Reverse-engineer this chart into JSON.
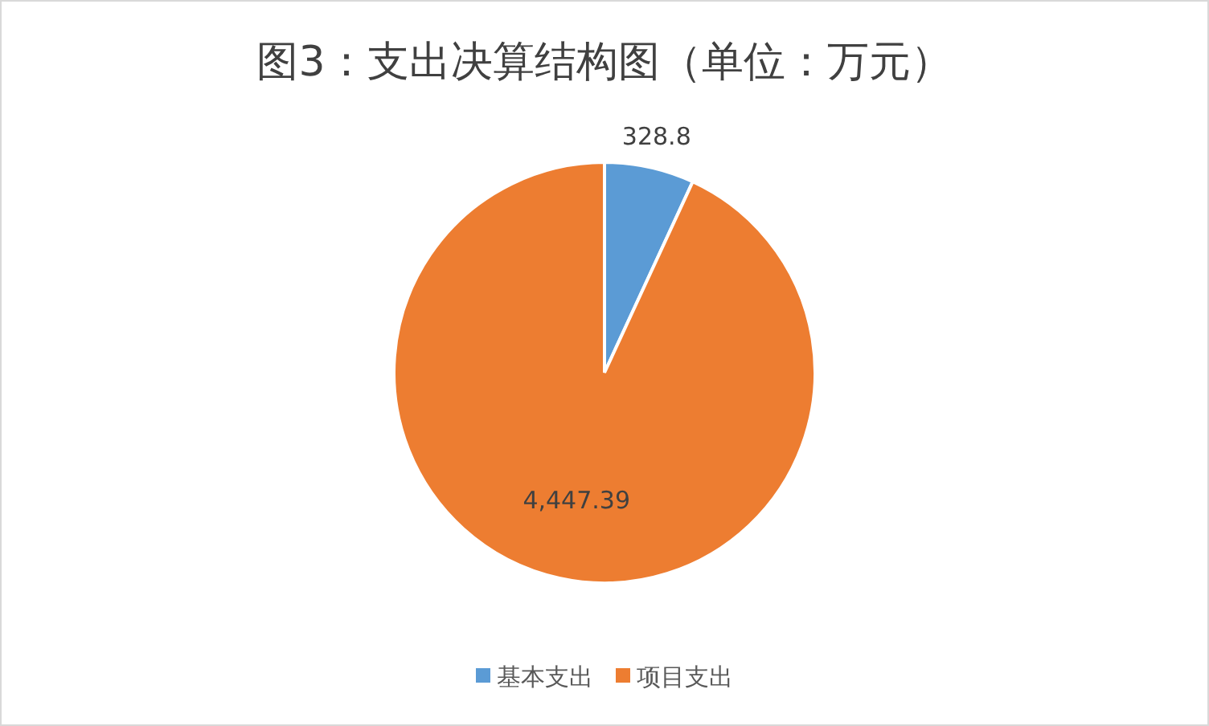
{
  "chart_data": {
    "type": "pie",
    "title": "图3：支出决算结构图（单位：万元）",
    "categories": [
      "基本支出",
      "项目支出"
    ],
    "values": [
      328.8,
      4447.39
    ],
    "colors": [
      "#5b9bd5",
      "#ed7d31"
    ],
    "value_labels": [
      "328.8",
      "4,447.39"
    ],
    "legend": "bottom"
  }
}
